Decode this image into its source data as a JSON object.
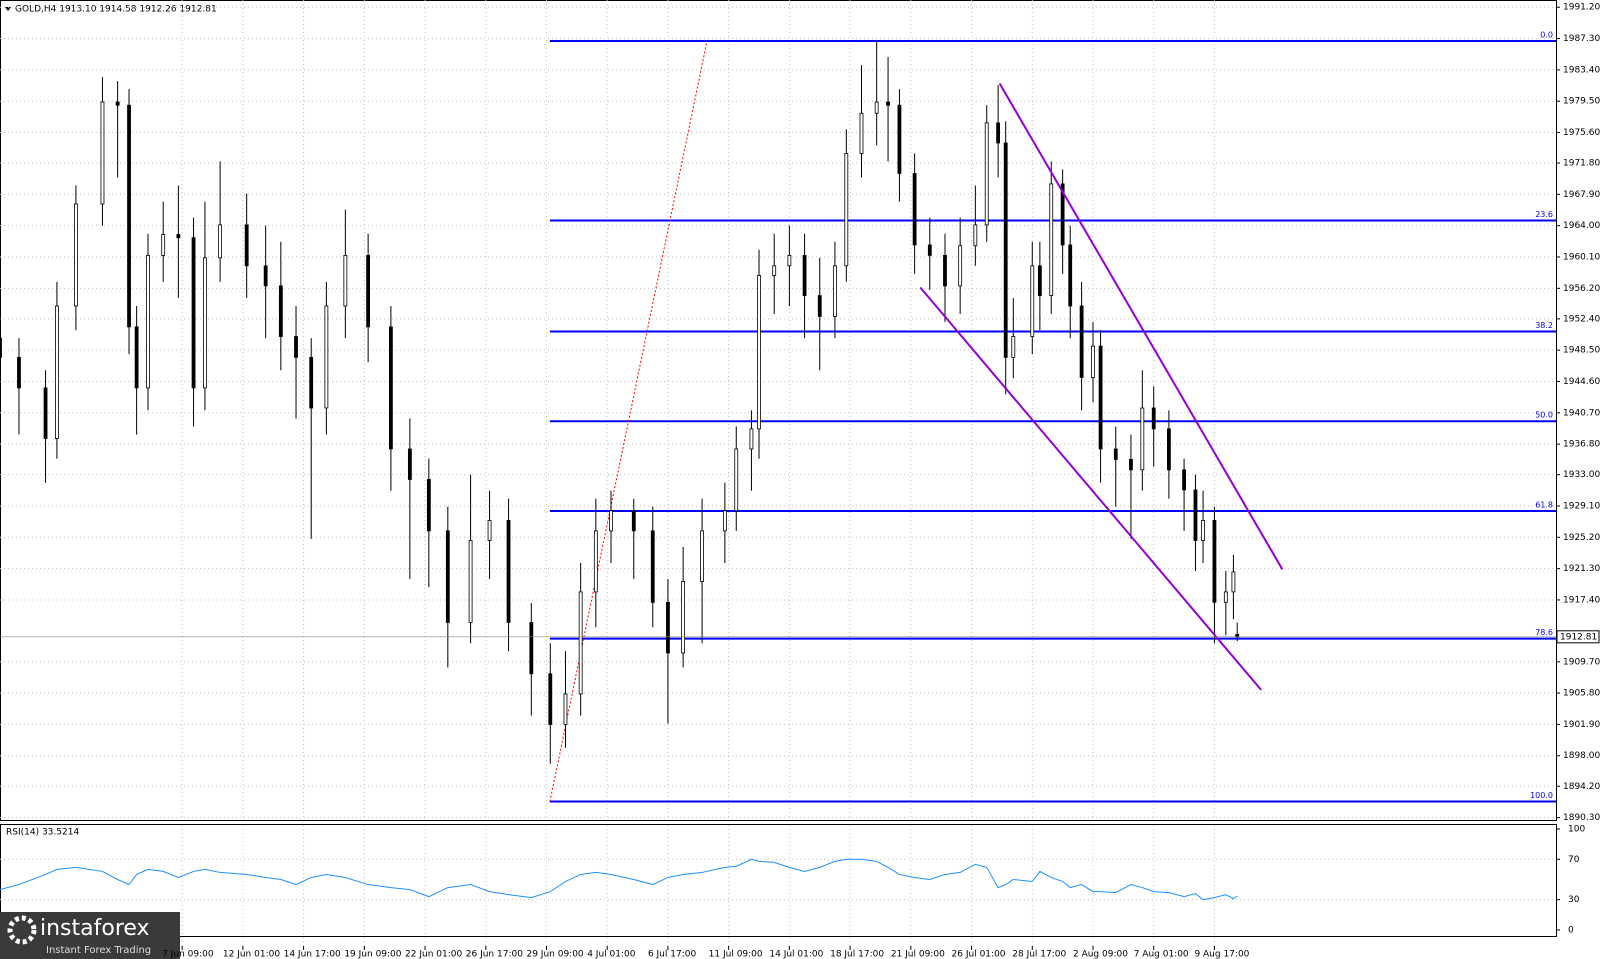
{
  "chart_data": {
    "type": "candlestick",
    "header": "GOLD,H4  1913.10 1914.58 1912.26 1912.81",
    "x": [
      0,
      5,
      12,
      15,
      20,
      27,
      31,
      34,
      36,
      39,
      43,
      47,
      51,
      54,
      58,
      65,
      70,
      74,
      78,
      82,
      86,
      91,
      97,
      103,
      108,
      113,
      118,
      124,
      129,
      134,
      140,
      145,
      149,
      153,
      157,
      161,
      167,
      172,
      176,
      180,
      185,
      191,
      194,
      198,
      200,
      204,
      208,
      212,
      216,
      220,
      223,
      227,
      231,
      234,
      237,
      241,
      245,
      249,
      253,
      257,
      260,
      263,
      265,
      267,
      272,
      274,
      277,
      280,
      282,
      285,
      288,
      290,
      294,
      298,
      301,
      304,
      308,
      312,
      315,
      317,
      320,
      323,
      325,
      326
    ],
    "open": [
      1950,
      1947.6,
      1943.8,
      1937.5,
      1954,
      1966.7,
      1979.4,
      1979,
      1951.4,
      1943.8,
      1960.3,
      1962.9,
      1962.5,
      1943.8,
      1960,
      1964.1,
      1959,
      1956.5,
      1950.2,
      1947.6,
      1941.3,
      1954,
      1960.3,
      1951.4,
      1936.2,
      1932.4,
      1926,
      1914.6,
      1924.8,
      1927.3,
      1914.6,
      1908.2,
      1901.9,
      1905.7,
      1918.4,
      1926,
      1928.5,
      1926,
      1917.1,
      1910.8,
      1919.7,
      1926,
      1928.5,
      1936.2,
      1938.7,
      1957.8,
      1959,
      1960.3,
      1955.3,
      1952.7,
      1959,
      1973,
      1978,
      1979.4,
      1979,
      1970.5,
      1961.6,
      1960.3,
      1956.5,
      1961.5,
      1964.1,
      1976.8,
      1974.3,
      1947.6,
      1950.2,
      1959,
      1955.3,
      1969.2,
      1961.6,
      1954,
      1945.1,
      1949,
      1936.2,
      1934.9,
      1933.6,
      1941.3,
      1938.7,
      1933.6,
      1931.1,
      1924.8,
      1927.3,
      1917.1,
      1918.4,
      1913.1
    ],
    "high": [
      1953,
      1950,
      1946,
      1957,
      1969,
      1982.5,
      1982,
      1981,
      1954,
      1963,
      1967,
      1969,
      1965,
      1967,
      1972,
      1968,
      1964,
      1962,
      1954,
      1950,
      1957,
      1966,
      1963,
      1954,
      1940,
      1935,
      1929,
      1933,
      1931,
      1930,
      1917,
      1912,
      1911,
      1922,
      1930,
      1931,
      1930,
      1929,
      1920,
      1924,
      1930,
      1932,
      1939,
      1941,
      1961,
      1963,
      1964,
      1963,
      1960,
      1962,
      1976,
      1984,
      1987,
      1985,
      1981,
      1973,
      1965,
      1963,
      1965,
      1969,
      1979,
      1981.5,
      1977,
      1955,
      1962,
      1962,
      1972,
      1971,
      1964,
      1957,
      1952,
      1951,
      1939,
      1938,
      1946,
      1944,
      1941,
      1935,
      1933,
      1931,
      1929,
      1921,
      1923,
      1914.58
    ],
    "low": [
      1944,
      1938,
      1932,
      1935,
      1951,
      1964,
      1970,
      1948,
      1938,
      1941,
      1957,
      1955,
      1939,
      1941,
      1957,
      1955,
      1950,
      1946,
      1940,
      1925,
      1938,
      1950,
      1947,
      1931,
      1920,
      1919,
      1909,
      1912,
      1920,
      1911,
      1903,
      1897,
      1899,
      1903,
      1914,
      1922,
      1920,
      1914,
      1902,
      1909,
      1912,
      1922,
      1926,
      1931,
      1935,
      1953,
      1954,
      1950,
      1946,
      1950,
      1957,
      1970,
      1974,
      1972,
      1967,
      1958,
      1956,
      1952,
      1953,
      1959,
      1962,
      1970,
      1943,
      1945,
      1948,
      1951,
      1953,
      1958,
      1950,
      1941,
      1942,
      1932,
      1929,
      1925,
      1931,
      1934,
      1930,
      1926,
      1921,
      1922,
      1912,
      1913,
      1915,
      1912.26
    ],
    "close": [
      1947.6,
      1943.8,
      1937.5,
      1954,
      1966.7,
      1979.4,
      1979,
      1951.4,
      1943.8,
      1960.3,
      1962.9,
      1962.5,
      1943.8,
      1960,
      1964.1,
      1959,
      1956.5,
      1950.2,
      1947.6,
      1941.3,
      1954,
      1960.3,
      1951.4,
      1936.2,
      1932.4,
      1926,
      1914.6,
      1924.8,
      1927.3,
      1914.6,
      1908.2,
      1901.9,
      1905.7,
      1918.4,
      1926,
      1928.5,
      1926,
      1917.1,
      1910.8,
      1919.7,
      1926,
      1928.5,
      1936.2,
      1938.7,
      1957.8,
      1959,
      1960.3,
      1955.3,
      1952.7,
      1959,
      1973,
      1978,
      1979.4,
      1979,
      1970.5,
      1961.6,
      1960.3,
      1956.5,
      1961.5,
      1964.1,
      1976.8,
      1974.3,
      1947.6,
      1950.2,
      1959,
      1955.3,
      1969.2,
      1961.6,
      1954,
      1945.1,
      1949,
      1936.2,
      1934.9,
      1933.6,
      1941.3,
      1938.7,
      1933.6,
      1931.1,
      1924.8,
      1927.3,
      1917.1,
      1918.4,
      1920.9,
      1912.81
    ],
    "xlim": [
      0,
      410
    ],
    "xticks": [
      {
        "value": 48,
        "label": "7 Jun 09:00"
      },
      {
        "value": 64,
        "label": "12 Jun 01:00"
      },
      {
        "value": 80,
        "label": "14 Jun 17:00"
      },
      {
        "value": 96,
        "label": "19 Jun 09:00"
      },
      {
        "value": 112,
        "label": "22 Jun 01:00"
      },
      {
        "value": 128,
        "label": "26 Jun 17:00"
      },
      {
        "value": 144,
        "label": "29 Jun 09:00"
      },
      {
        "value": 160,
        "label": "4 Jul 01:00"
      },
      {
        "value": 176,
        "label": "6 Jul 17:00"
      },
      {
        "value": 192,
        "label": "11 Jul 09:00"
      },
      {
        "value": 208,
        "label": "14 Jul 01:00"
      },
      {
        "value": 224,
        "label": "18 Jul 17:00"
      },
      {
        "value": 240,
        "label": "21 Jul 09:00"
      },
      {
        "value": 256,
        "label": "26 Jul 01:00"
      },
      {
        "value": 272,
        "label": "28 Jul 17:00"
      },
      {
        "value": 288,
        "label": "2 Aug 09:00"
      },
      {
        "value": 304,
        "label": "7 Aug 01:00"
      },
      {
        "value": 320,
        "label": "9 Aug 17:00"
      }
    ],
    "ylim": [
      1890.0,
      1992.1
    ],
    "yticks": [
      {
        "value": 1991.2,
        "label": "1991.20"
      },
      {
        "value": 1987.3,
        "label": "1987.30"
      },
      {
        "value": 1983.4,
        "label": "1983.40"
      },
      {
        "value": 1979.5,
        "label": "1979.50"
      },
      {
        "value": 1975.6,
        "label": "1975.60"
      },
      {
        "value": 1971.8,
        "label": "1971.80"
      },
      {
        "value": 1967.9,
        "label": "1967.90"
      },
      {
        "value": 1964.0,
        "label": "1964.00"
      },
      {
        "value": 1960.1,
        "label": "1960.10"
      },
      {
        "value": 1956.2,
        "label": "1956.20"
      },
      {
        "value": 1952.4,
        "label": "1952.40"
      },
      {
        "value": 1948.5,
        "label": "1948.50"
      },
      {
        "value": 1944.6,
        "label": "1944.60"
      },
      {
        "value": 1940.7,
        "label": "1940.70"
      },
      {
        "value": 1936.8,
        "label": "1936.80"
      },
      {
        "value": 1933.0,
        "label": "1933.00"
      },
      {
        "value": 1929.1,
        "label": "1929.10"
      },
      {
        "value": 1925.2,
        "label": "1925.20"
      },
      {
        "value": 1921.3,
        "label": "1921.30"
      },
      {
        "value": 1917.4,
        "label": "1917.40"
      },
      {
        "value": 1909.7,
        "label": "1909.70"
      },
      {
        "value": 1905.8,
        "label": "1905.80"
      },
      {
        "value": 1901.9,
        "label": "1901.90"
      },
      {
        "value": 1898.0,
        "label": "1898.00"
      },
      {
        "value": 1894.2,
        "label": "1894.20"
      },
      {
        "value": 1890.3,
        "label": "1890.30"
      }
    ],
    "grid": true,
    "current_price": 1912.81,
    "fib": {
      "start_x": 144.9,
      "color": "#0000ff",
      "levels": [
        {
          "label": "0.0",
          "price": 1987.0
        },
        {
          "label": "23.6",
          "price": 1964.65
        },
        {
          "label": "38.2",
          "price": 1950.83
        },
        {
          "label": "50.0",
          "price": 1939.65
        },
        {
          "label": "61.8",
          "price": 1928.48
        },
        {
          "label": "78.6",
          "price": 1912.58
        },
        {
          "label": "100.0",
          "price": 1892.3
        }
      ]
    },
    "fib_base": {
      "x": [
        144.9,
        186.3
      ],
      "y": [
        1892.3,
        1987.0
      ],
      "color": "#ff0000"
    },
    "trendlines": [
      {
        "x": [
          263.4,
          337.9
        ],
        "y": [
          1981.7,
          1921.2
        ],
        "color": "#9400d3"
      },
      {
        "x": [
          242.5,
          332.3
        ],
        "y": [
          1956.3,
          1906.2
        ],
        "color": "#9400d3"
      }
    ],
    "rsi": {
      "label": "RSI(14) 33.5214",
      "color": "#1e90ff",
      "ylim": [
        -5,
        104
      ],
      "yticks": [
        100,
        70,
        30,
        0
      ],
      "values": [
        40,
        45,
        55,
        60,
        62,
        58,
        50,
        45,
        55,
        60,
        58,
        52,
        58,
        60,
        57,
        55,
        52,
        50,
        45,
        52,
        55,
        52,
        45,
        42,
        40,
        33,
        42,
        45,
        38,
        35,
        32,
        38,
        48,
        55,
        57,
        55,
        50,
        45,
        52,
        55,
        57,
        62,
        63,
        70,
        68,
        67,
        62,
        58,
        62,
        68,
        70,
        70,
        68,
        62,
        55,
        52,
        50,
        55,
        57,
        65,
        62,
        42,
        45,
        50,
        48,
        58,
        52,
        48,
        42,
        45,
        38,
        38,
        37,
        45,
        42,
        38,
        37,
        33,
        36,
        30,
        32,
        35,
        31,
        33.5214
      ]
    },
    "watermark": {
      "name": "instaforex",
      "tagline": "Instant Forex Trading"
    }
  }
}
